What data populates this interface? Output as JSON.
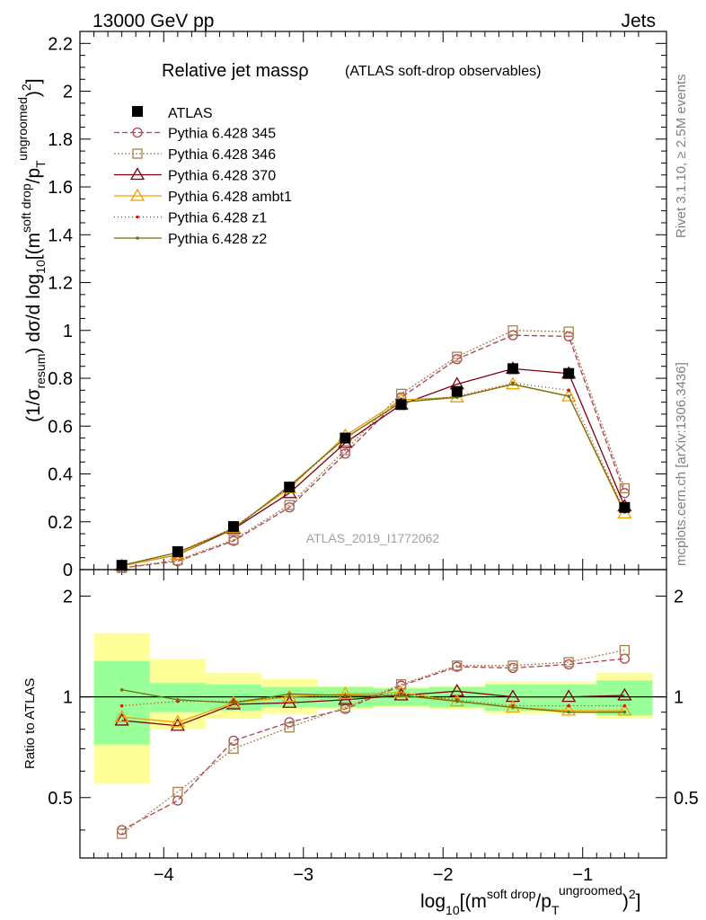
{
  "header": {
    "left": "13000 GeV pp",
    "right": "Jets"
  },
  "side_labels": {
    "rivet": "Rivet 3.1.10, ≥ 2.5M events",
    "mcplots": "mcplots.cern.ch [arXiv:1306.3436]"
  },
  "chart_data": {
    "type": "line",
    "title_main": "Relative jet massρ",
    "title_sub": "(ATLAS soft-drop observables)",
    "analysis_label": "ATLAS_2019_I1772062",
    "ylabel_top": "(1/σresum) dσ/d log10[(msoft drop/pTungroomed)2]",
    "ylabel_bottom": "Ratio to ATLAS",
    "xlabel": "log10[(msoft drop/pTungroomed)2]",
    "x": [
      -4.3,
      -3.9,
      -3.5,
      -3.1,
      -2.7,
      -2.3,
      -1.9,
      -1.5,
      -1.1,
      -0.7
    ],
    "bin_edges": [
      -4.5,
      -4.1,
      -3.7,
      -3.3,
      -2.9,
      -2.5,
      -2.1,
      -1.7,
      -1.3,
      -0.9,
      -0.5
    ],
    "xlim": [
      -4.6,
      -0.4
    ],
    "ylim_top": [
      0,
      2.25
    ],
    "ylim_bottom": [
      0.33,
      2.4
    ],
    "x_ticks": [
      -4,
      -3,
      -2,
      -1
    ],
    "x_tick_labels": [
      "−4",
      "−3",
      "−2",
      "−1"
    ],
    "y_ticks_top": [
      0,
      0.2,
      0.4,
      0.6,
      0.8,
      1,
      1.2,
      1.4,
      1.6,
      1.8,
      2,
      2.2
    ],
    "y_tick_labels_top": [
      "0",
      "0.2",
      "0.4",
      "0.6",
      "0.8",
      "1",
      "1.2",
      "1.4",
      "1.6",
      "1.8",
      "2",
      "2.2"
    ],
    "y_ticks_bottom": [
      0.5,
      1,
      2
    ],
    "y_tick_labels_bottom": [
      "0.5",
      "1",
      "2"
    ],
    "data": {
      "name": "ATLAS",
      "values": [
        0.018,
        0.075,
        0.18,
        0.345,
        0.55,
        0.69,
        0.745,
        0.84,
        0.82,
        0.26
      ]
    },
    "band_inner": [
      [
        0.72,
        1.28
      ],
      [
        0.9,
        1.1
      ],
      [
        0.91,
        1.09
      ],
      [
        0.93,
        1.07
      ],
      [
        0.93,
        1.07
      ],
      [
        0.94,
        1.06
      ],
      [
        0.93,
        1.07
      ],
      [
        0.91,
        1.09
      ],
      [
        0.91,
        1.09
      ],
      [
        0.88,
        1.12
      ]
    ],
    "band_outer": [
      [
        0.55,
        1.55
      ],
      [
        0.8,
        1.3
      ],
      [
        0.86,
        1.18
      ],
      [
        0.89,
        1.13
      ],
      [
        0.92,
        1.08
      ],
      [
        0.93,
        1.07
      ],
      [
        0.92,
        1.08
      ],
      [
        0.89,
        1.11
      ],
      [
        0.89,
        1.11
      ],
      [
        0.86,
        1.18
      ]
    ],
    "series": [
      {
        "name": "Pythia 6.428 345",
        "color": "#b04050",
        "dash": "6,3",
        "marker": "circle",
        "values": [
          0.007,
          0.035,
          0.12,
          0.26,
          0.485,
          0.72,
          0.88,
          0.98,
          0.975,
          0.32
        ],
        "ratio": [
          0.4,
          0.49,
          0.74,
          0.84,
          0.92,
          1.08,
          1.23,
          1.22,
          1.25,
          1.3
        ]
      },
      {
        "name": "Pythia 6.428 346",
        "color": "#a88050",
        "dash": "2,2",
        "marker": "square",
        "values": [
          0.007,
          0.04,
          0.125,
          0.27,
          0.5,
          0.735,
          0.89,
          1.0,
          0.995,
          0.34
        ],
        "ratio": [
          0.39,
          0.52,
          0.7,
          0.81,
          0.93,
          1.09,
          1.24,
          1.24,
          1.27,
          1.38
        ]
      },
      {
        "name": "Pythia 6.428 370",
        "color": "#800010",
        "dash": "",
        "marker": "triangle",
        "values": [
          0.016,
          0.062,
          0.17,
          0.32,
          0.53,
          0.69,
          0.775,
          0.84,
          0.82,
          0.265
        ],
        "ratio": [
          0.85,
          0.82,
          0.95,
          0.96,
          0.98,
          1.01,
          1.04,
          1.0,
          1.0,
          1.01
        ]
      },
      {
        "name": "Pythia 6.428 ambt1",
        "color": "#f0a000",
        "dash": "",
        "marker": "triangle",
        "values": [
          0.016,
          0.063,
          0.175,
          0.34,
          0.56,
          0.71,
          0.72,
          0.775,
          0.725,
          0.235
        ],
        "ratio": [
          0.87,
          0.84,
          0.96,
          1.0,
          1.02,
          1.03,
          0.97,
          0.93,
          0.91,
          0.91
        ]
      },
      {
        "name": "Pythia 6.428 z1",
        "color": "#d02000",
        "dash": "1,3",
        "marker": "dot",
        "values": [
          0.017,
          0.072,
          0.175,
          0.345,
          0.55,
          0.7,
          0.725,
          0.78,
          0.75,
          0.245
        ],
        "ratio": [
          0.94,
          0.97,
          0.97,
          1.0,
          1.0,
          1.02,
          0.98,
          0.94,
          0.94,
          0.94
        ]
      },
      {
        "name": "Pythia 6.428 z2",
        "color": "#707010",
        "dash": "",
        "marker": "dot",
        "values": [
          0.018,
          0.072,
          0.17,
          0.35,
          0.55,
          0.7,
          0.72,
          0.775,
          0.725,
          0.24
        ],
        "ratio": [
          1.05,
          0.98,
          0.96,
          1.02,
          1.01,
          1.01,
          0.97,
          0.93,
          0.9,
          0.9
        ]
      }
    ]
  }
}
